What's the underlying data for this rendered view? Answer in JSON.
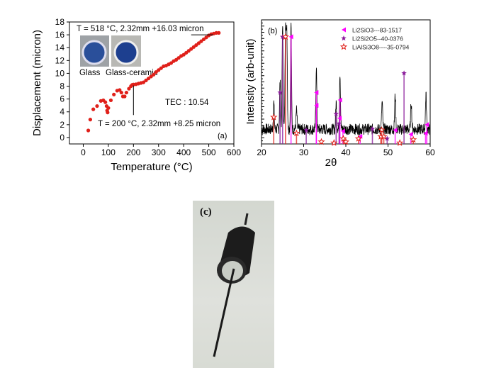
{
  "chart_data": [
    {
      "type": "scatter",
      "panel_label": "(a)",
      "xlabel": "Temperature (°C)",
      "ylabel": "Displacement (micron)",
      "xlim": [
        -55,
        600
      ],
      "ylim": [
        -1,
        18
      ],
      "xticks": [
        0,
        100,
        200,
        300,
        400,
        500,
        600
      ],
      "yticks": [
        0,
        2,
        4,
        6,
        8,
        10,
        12,
        14,
        16,
        18
      ],
      "grid": false,
      "marker_color": "#e0201a",
      "annotations": {
        "top": "T = 518 °C, 2.32mm +16.03 micron",
        "bottom": "T = 200 °C, 2.32mm +8.25 micron",
        "tec": "TEC : 10.54",
        "inset_glass": "Glass",
        "inset_glass_ceramic": "Glass-ceramic"
      },
      "points": [
        [
          20,
          1.1
        ],
        [
          28,
          2.8
        ],
        [
          40,
          4.4
        ],
        [
          55,
          4.9
        ],
        [
          70,
          5.7
        ],
        [
          80,
          5.8
        ],
        [
          88,
          5.5
        ],
        [
          93,
          4.9
        ],
        [
          95,
          4.2
        ],
        [
          97,
          3.9
        ],
        [
          100,
          4.6
        ],
        [
          110,
          5.8
        ],
        [
          122,
          6.7
        ],
        [
          135,
          7.3
        ],
        [
          145,
          7.4
        ],
        [
          152,
          7.0
        ],
        [
          158,
          6.4
        ],
        [
          165,
          6.4
        ],
        [
          172,
          7.0
        ],
        [
          182,
          7.6
        ],
        [
          190,
          8.0
        ],
        [
          195,
          8.2
        ],
        [
          200,
          8.25
        ],
        [
          210,
          8.3
        ],
        [
          220,
          8.4
        ],
        [
          230,
          8.5
        ],
        [
          240,
          8.6
        ],
        [
          250,
          8.9
        ],
        [
          260,
          9.2
        ],
        [
          270,
          9.5
        ],
        [
          280,
          9.8
        ],
        [
          290,
          10.2
        ],
        [
          300,
          10.5
        ],
        [
          310,
          10.8
        ],
        [
          320,
          11.1
        ],
        [
          330,
          11.2
        ],
        [
          340,
          11.4
        ],
        [
          350,
          11.6
        ],
        [
          360,
          11.9
        ],
        [
          370,
          12.1
        ],
        [
          380,
          12.4
        ],
        [
          390,
          12.7
        ],
        [
          400,
          12.9
        ],
        [
          410,
          13.2
        ],
        [
          420,
          13.5
        ],
        [
          430,
          13.8
        ],
        [
          440,
          14.1
        ],
        [
          450,
          14.4
        ],
        [
          460,
          14.7
        ],
        [
          470,
          15.0
        ],
        [
          480,
          15.3
        ],
        [
          490,
          15.6
        ],
        [
          500,
          15.9
        ],
        [
          510,
          16.1
        ],
        [
          520,
          16.2
        ],
        [
          530,
          16.3
        ],
        [
          540,
          16.3
        ]
      ]
    },
    {
      "type": "line",
      "panel_label": "(b)",
      "xlabel": "2θ",
      "ylabel": "Intensity (arb-unit)",
      "xlim": [
        20,
        60
      ],
      "ylim": [
        0,
        1.1
      ],
      "xticks": [
        20,
        30,
        40,
        50,
        60
      ],
      "grid": false,
      "line_color": "#000000",
      "peaks": [
        [
          22.9,
          0.25
        ],
        [
          24.4,
          0.45
        ],
        [
          25.0,
          1.0
        ],
        [
          25.7,
          1.0
        ],
        [
          26.0,
          0.93
        ],
        [
          27.0,
          1.0
        ],
        [
          28.3,
          0.18
        ],
        [
          33.0,
          0.6
        ],
        [
          37.7,
          0.25
        ],
        [
          38.6,
          0.53
        ],
        [
          48.6,
          0.25
        ],
        [
          51.7,
          0.32
        ],
        [
          55.5,
          0.26
        ],
        [
          59.0,
          0.33
        ]
      ],
      "series": [
        {
          "name": "Li2SiO3---83-1517",
          "color": "#ff00ff",
          "marker": "left-triangle",
          "positions": [
            [
              27.0,
              1.0
            ],
            [
              33.0,
              0.48
            ],
            [
              33.0,
              0.36
            ],
            [
              38.6,
              0.41
            ],
            [
              38.5,
              0.24
            ],
            [
              39.3,
              0.12
            ],
            [
              43.4,
              0.07
            ],
            [
              51.7,
              0.13
            ],
            [
              55.4,
              0.09
            ],
            [
              59.2,
              0.18
            ],
            [
              58.9,
              0.1
            ]
          ]
        },
        {
          "name": "Li2Si2O5--40-0376",
          "color": "#8a1a9a",
          "marker": "star",
          "positions": [
            [
              24.4,
              0.48
            ],
            [
              25.0,
              1.0
            ],
            [
              30.6,
              0.13
            ],
            [
              37.7,
              0.28
            ],
            [
              38.4,
              0.19
            ],
            [
              46.3,
              0.14
            ],
            [
              49.8,
              0.05
            ],
            [
              53.8,
              0.66
            ]
          ]
        },
        {
          "name": "LiAlSi3O8----35-0794",
          "color": "#e0201a",
          "marker": "open-star",
          "positions": [
            [
              22.9,
              0.25
            ],
            [
              25.7,
              1.0
            ],
            [
              28.3,
              0.1
            ],
            [
              34.2,
              0.02
            ],
            [
              37.2,
              0.01
            ],
            [
              39.4,
              0.05
            ],
            [
              40.0,
              0.02
            ],
            [
              43.0,
              0.05
            ],
            [
              48.5,
              0.13
            ],
            [
              48.3,
              0.07
            ],
            [
              49.0,
              0.07
            ],
            [
              52.8,
              0.01
            ],
            [
              56.0,
              0.04
            ]
          ]
        }
      ]
    }
  ],
  "photo": {
    "label": "(c)"
  }
}
